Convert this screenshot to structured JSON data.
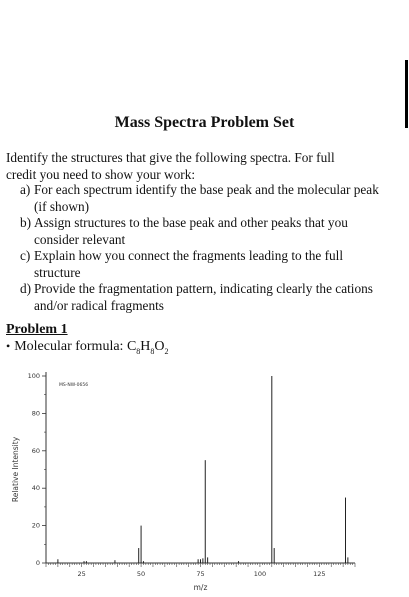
{
  "document": {
    "title": "Mass Spectra Problem Set",
    "intro": "Identify the structures that give the following spectra. For full credit you need to show your work:",
    "items": [
      {
        "label": "a)",
        "text": "For each spectrum identify the base peak and the molecular peak (if shown)"
      },
      {
        "label": "b)",
        "text": "Assign structures to the base peak and other peaks that you consider relevant"
      },
      {
        "label": "c)",
        "text": "Explain how you connect the fragments leading to the full structure"
      },
      {
        "label": "d)",
        "text": "Provide the fragmentation pattern, indicating clearly the cations and/or radical fragments"
      }
    ],
    "problem_title": "Problem 1",
    "formula_label": "Molecular formula: ",
    "formula_parts": [
      "C",
      "8",
      "H",
      "8",
      "O",
      "2"
    ]
  },
  "chart_data": {
    "type": "bar",
    "code": "MS-NW-0656",
    "xlabel": "m/z",
    "ylabel": "Relative Intensity",
    "xlim": [
      10,
      140
    ],
    "ylim": [
      0,
      100
    ],
    "xticks": [
      25,
      50,
      75,
      100,
      125
    ],
    "yticks": [
      0,
      20,
      40,
      60,
      80,
      100
    ],
    "peaks": [
      {
        "mz": 15,
        "intensity": 2
      },
      {
        "mz": 26,
        "intensity": 1
      },
      {
        "mz": 27,
        "intensity": 1
      },
      {
        "mz": 39,
        "intensity": 1.5
      },
      {
        "mz": 49,
        "intensity": 8
      },
      {
        "mz": 50,
        "intensity": 20
      },
      {
        "mz": 51,
        "intensity": 1
      },
      {
        "mz": 74,
        "intensity": 2
      },
      {
        "mz": 75,
        "intensity": 2
      },
      {
        "mz": 76,
        "intensity": 2.5
      },
      {
        "mz": 77,
        "intensity": 55
      },
      {
        "mz": 78,
        "intensity": 3
      },
      {
        "mz": 91,
        "intensity": 1
      },
      {
        "mz": 105,
        "intensity": 100
      },
      {
        "mz": 106,
        "intensity": 8
      },
      {
        "mz": 136,
        "intensity": 35
      },
      {
        "mz": 137,
        "intensity": 3
      }
    ]
  }
}
